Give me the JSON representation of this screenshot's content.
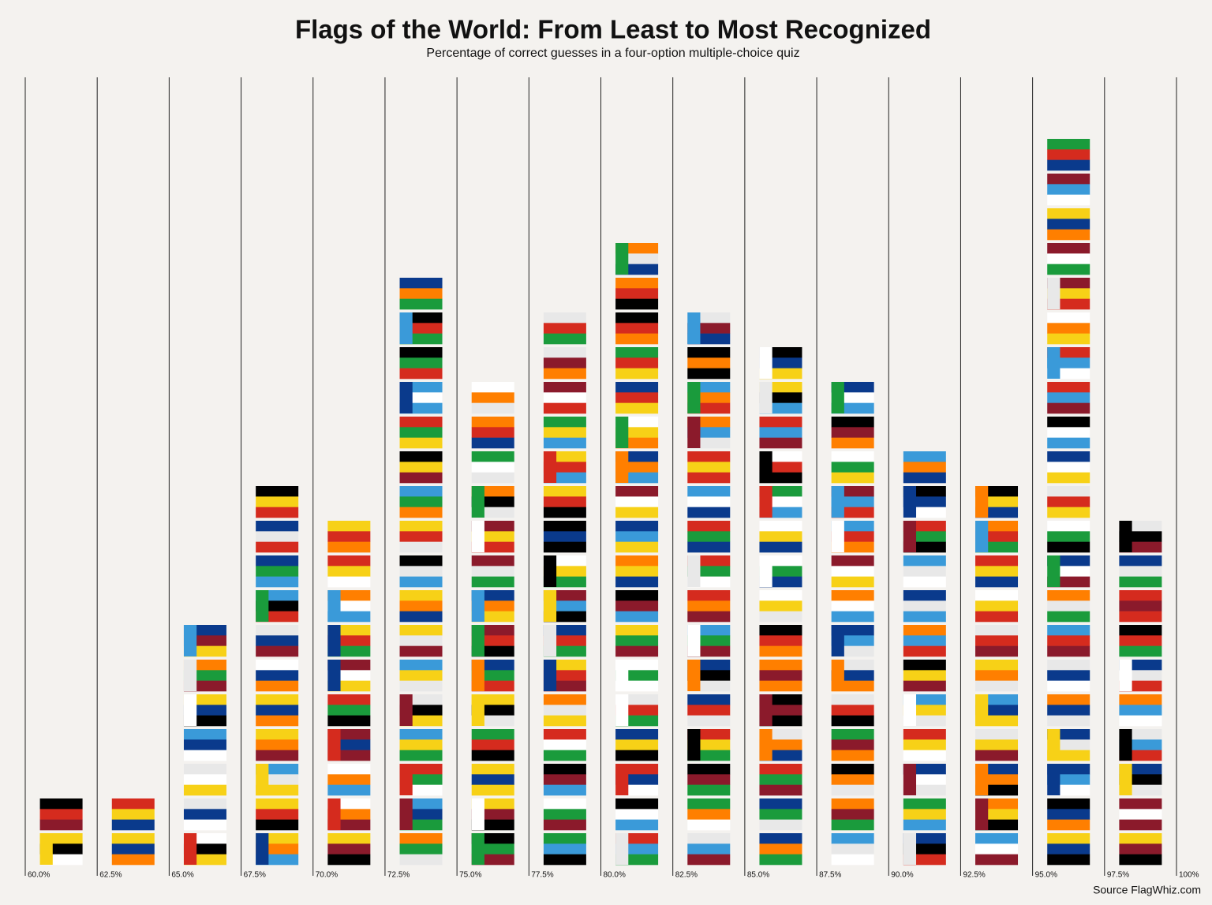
{
  "chart_data": {
    "type": "histogram",
    "title": "Flags of the World: From Least to Most Recognized",
    "subtitle": "Percentage of correct guesses in a four-option multiple-choice quiz",
    "source": "Source FlagWhiz.com",
    "bins": [
      60,
      62.5,
      65,
      67.5,
      70,
      72.5,
      75,
      77.5,
      80,
      82.5,
      85,
      87.5,
      90,
      92.5,
      95,
      97.5,
      100
    ],
    "values": [
      2,
      2,
      7,
      11,
      10,
      17,
      14,
      16,
      18,
      16,
      15,
      14,
      12,
      11,
      21,
      10
    ],
    "xlim": [
      60,
      100
    ],
    "xticks": [
      {
        "value": 60,
        "label": "60.0%"
      },
      {
        "value": 62.5,
        "label": "62.5%"
      },
      {
        "value": 65,
        "label": "65.0%"
      },
      {
        "value": 67.5,
        "label": "67.5%"
      },
      {
        "value": 70,
        "label": "70.0%"
      },
      {
        "value": 72.5,
        "label": "72.5%"
      },
      {
        "value": 75,
        "label": "75.0%"
      },
      {
        "value": 77.5,
        "label": "77.5%"
      },
      {
        "value": 80,
        "label": "80.0%"
      },
      {
        "value": 82.5,
        "label": "82.5%"
      },
      {
        "value": 85,
        "label": "85.0%"
      },
      {
        "value": 87.5,
        "label": "87.5%"
      },
      {
        "value": 90,
        "label": "90.0%"
      },
      {
        "value": 92.5,
        "label": "92.5%"
      },
      {
        "value": 95,
        "label": "95.0%"
      },
      {
        "value": 97.5,
        "label": "97.5%"
      },
      {
        "value": 100,
        "label": "100%"
      }
    ]
  }
}
